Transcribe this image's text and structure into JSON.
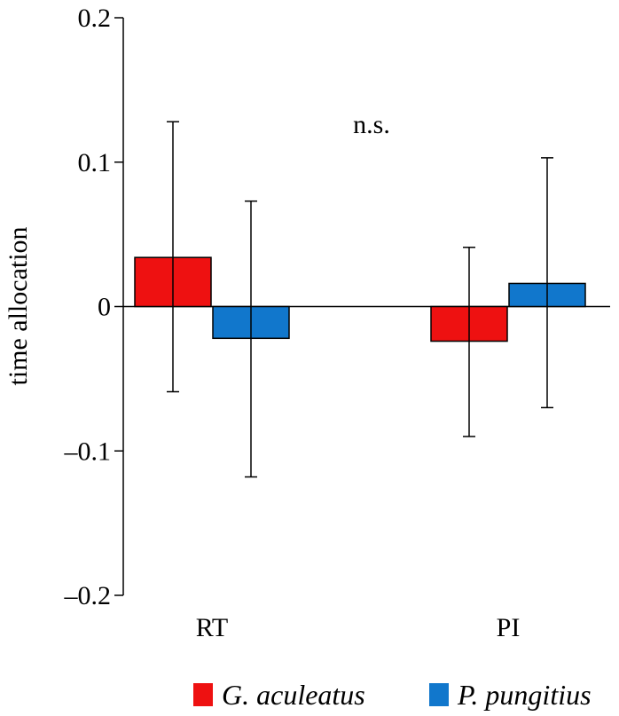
{
  "chart_data": {
    "type": "bar",
    "ylabel": "time allocation",
    "ylim": [
      -0.2,
      0.2
    ],
    "yticks": [
      {
        "value": 0.2,
        "label": "0.2"
      },
      {
        "value": 0.1,
        "label": "0.1"
      },
      {
        "value": 0,
        "label": "0"
      },
      {
        "value": -0.1,
        "label": "–0.1"
      },
      {
        "value": -0.2,
        "label": "–0.2"
      }
    ],
    "categories": [
      "RT",
      "PI"
    ],
    "series": [
      {
        "name": "G. aculeatus",
        "color": "#ee1111",
        "values": [
          0.034,
          -0.024
        ],
        "error_upper": [
          0.128,
          0.041
        ],
        "error_lower": [
          -0.059,
          -0.09
        ]
      },
      {
        "name": "P. pungitius",
        "color": "#1177cc",
        "values": [
          -0.022,
          0.016
        ],
        "error_upper": [
          0.073,
          0.103
        ],
        "error_lower": [
          -0.118,
          -0.07
        ]
      }
    ],
    "annotation": "n.s.",
    "grid": false,
    "legend_position": "bottom"
  }
}
